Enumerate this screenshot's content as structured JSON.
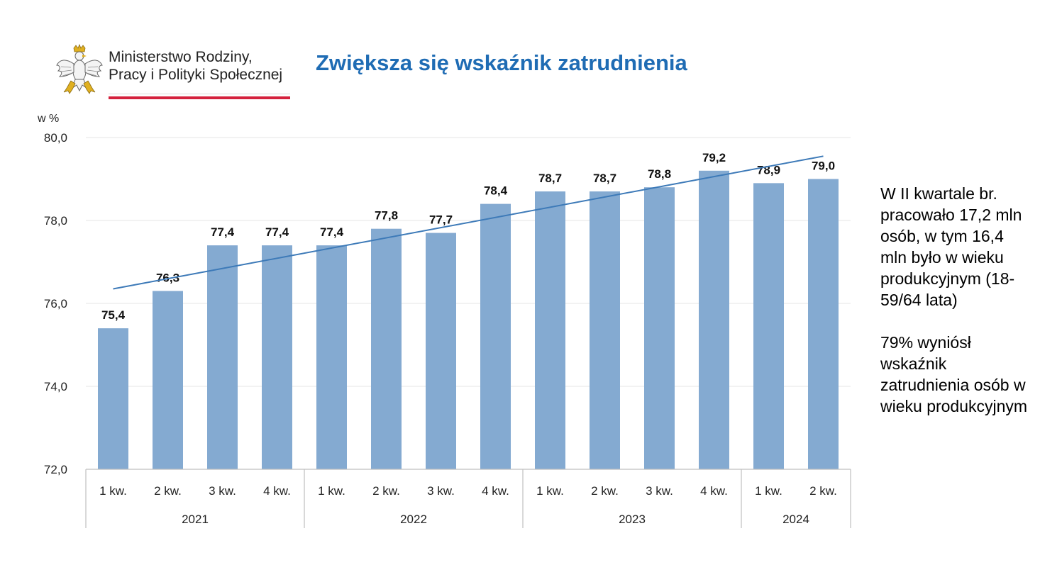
{
  "logo": {
    "line1": "Ministerstwo Rodziny,",
    "line2": "Pracy i Polityki Społecznej"
  },
  "title": "Zwiększa się wskaźnik zatrudnienia",
  "side_text": {
    "paragraph1": "W II kwartale br. pracowało 17,2 mln osób, w tym 16,4 mln było w wieku produkcyjnym (18-59/64 lata)",
    "paragraph2": "79% wyniósł wskaźnik zatrudnienia osób w wieku produkcyjnym"
  },
  "colors": {
    "bar": "#84aad1",
    "trend": "#3d7ab8",
    "title": "#1f6cb4",
    "logo_red": "#d4213d"
  },
  "chart_data": {
    "type": "bar",
    "ylabel": "w %",
    "ylim": [
      72.0,
      80.0
    ],
    "yticks": [
      "72,0",
      "74,0",
      "76,0",
      "78,0",
      "80,0"
    ],
    "ytick_values": [
      72,
      74,
      76,
      78,
      80
    ],
    "grid": true,
    "categories": [
      "1 kw.",
      "2 kw.",
      "3 kw.",
      "4 kw.",
      "1 kw.",
      "2 kw.",
      "3 kw.",
      "4 kw.",
      "1 kw.",
      "2 kw.",
      "3 kw.",
      "4 kw.",
      "1 kw.",
      "2 kw."
    ],
    "groups": [
      {
        "label": "2021",
        "count": 4
      },
      {
        "label": "2022",
        "count": 4
      },
      {
        "label": "2023",
        "count": 4
      },
      {
        "label": "2024",
        "count": 2
      }
    ],
    "values": [
      75.4,
      76.3,
      77.4,
      77.4,
      77.4,
      77.8,
      77.7,
      78.4,
      78.7,
      78.7,
      78.8,
      79.2,
      78.9,
      79.0
    ],
    "data_labels": [
      "75,4",
      "76,3",
      "77,4",
      "77,4",
      "77,4",
      "77,8",
      "77,7",
      "78,4",
      "78,7",
      "78,7",
      "78,8",
      "79,2",
      "78,9",
      "79,0"
    ],
    "trendline": {
      "type": "linear",
      "start": 76.35,
      "end": 79.55
    }
  }
}
